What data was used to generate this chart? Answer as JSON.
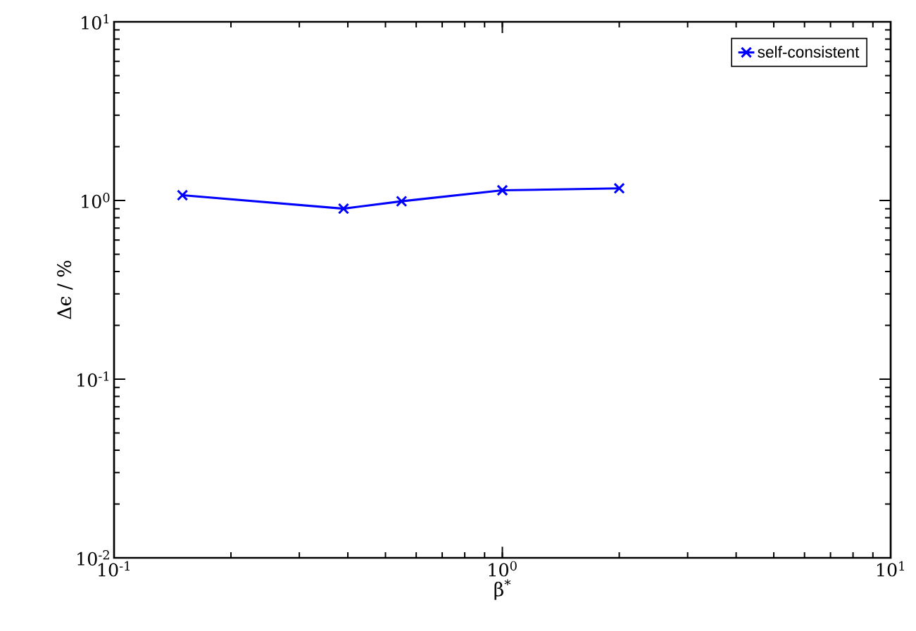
{
  "chart_data": {
    "type": "line",
    "xlabel": "β$^{*}$",
    "ylabel": "Δϵ / %",
    "log": "xy",
    "xlim": [
      0.1,
      10
    ],
    "ylim": [
      0.01,
      10
    ],
    "xticks": [
      {
        "value": 0.1,
        "label": "10$^{-1}$"
      },
      {
        "value": 1,
        "label": "10$^{0}$"
      },
      {
        "value": 10,
        "label": "10$^{1}$"
      }
    ],
    "yticks": [
      {
        "value": 0.01,
        "label": "10$^{-2}$"
      },
      {
        "value": 0.1,
        "label": "10$^{-1}$"
      },
      {
        "value": 1,
        "label": "10$^{0}$"
      },
      {
        "value": 10,
        "label": "10$^{1}$"
      }
    ],
    "legend": "top right",
    "marker": "cross",
    "line_style": "solid",
    "series": [
      {
        "name": "self-consistent",
        "color": "#0000ff",
        "x": [
          0.15,
          0.39,
          0.55,
          1.0,
          2.0
        ],
        "values": [
          1.07,
          0.9,
          0.99,
          1.14,
          1.17
        ]
      }
    ]
  }
}
